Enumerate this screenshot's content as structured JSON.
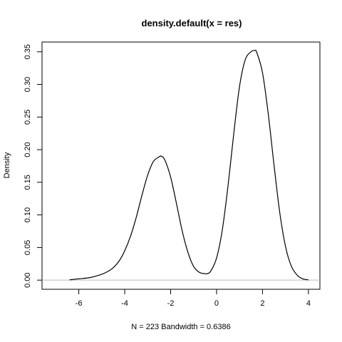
{
  "chart_data": {
    "type": "line",
    "title": "density.default(x = res)",
    "xlabel": "N = 223   Bandwidth = 0.6386",
    "ylabel": "Density",
    "xlim": [
      -7.6,
      4.5
    ],
    "ylim": [
      -0.014,
      0.365
    ],
    "x_ticks": [
      -6,
      -4,
      -2,
      0,
      2,
      4
    ],
    "x_tick_labels": [
      "-6",
      "-4",
      "-2",
      "0",
      "2",
      "4"
    ],
    "y_ticks": [
      0.0,
      0.05,
      0.1,
      0.15,
      0.2,
      0.25,
      0.3,
      0.35
    ],
    "y_tick_labels": [
      "0.00",
      "0.05",
      "0.10",
      "0.15",
      "0.20",
      "0.25",
      "0.30",
      "0.35"
    ],
    "zero_line": true,
    "grid": false,
    "series": [
      {
        "x": [
          -6.4,
          -6.0,
          -5.5,
          -5.0,
          -4.75,
          -4.5,
          -4.25,
          -4.0,
          -3.75,
          -3.5,
          -3.25,
          -3.0,
          -2.75,
          -2.5,
          -2.4,
          -2.25,
          -2.0,
          -1.75,
          -1.5,
          -1.25,
          -1.0,
          -0.75,
          -0.5,
          -0.4,
          -0.25,
          0.0,
          0.25,
          0.5,
          0.75,
          1.0,
          1.25,
          1.5,
          1.65,
          1.75,
          2.0,
          2.25,
          2.5,
          2.75,
          3.0,
          3.25,
          3.5,
          3.75,
          4.0
        ],
        "y": [
          0.0005,
          0.002,
          0.004,
          0.009,
          0.013,
          0.019,
          0.029,
          0.045,
          0.067,
          0.096,
          0.13,
          0.161,
          0.182,
          0.189,
          0.19,
          0.184,
          0.158,
          0.118,
          0.076,
          0.043,
          0.021,
          0.012,
          0.01,
          0.01,
          0.014,
          0.034,
          0.077,
          0.145,
          0.225,
          0.297,
          0.338,
          0.35,
          0.352,
          0.349,
          0.318,
          0.255,
          0.177,
          0.104,
          0.052,
          0.022,
          0.008,
          0.002,
          0.0005
        ]
      }
    ]
  }
}
